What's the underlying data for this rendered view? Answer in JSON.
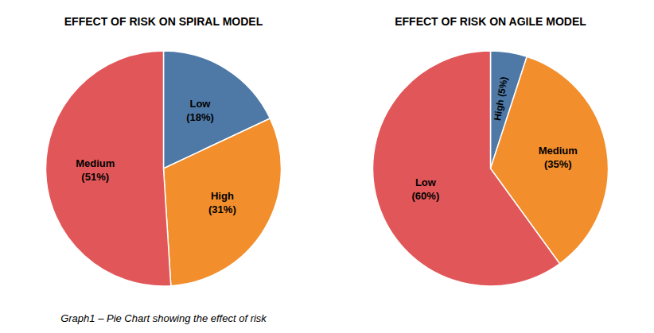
{
  "chart_data": [
    {
      "type": "pie",
      "title": "EFFECT OF RISK ON SPIRAL MODEL",
      "categories": [
        "Low",
        "High",
        "Medium"
      ],
      "values": [
        18,
        31,
        51
      ],
      "value_labels": [
        "(18%)",
        "(31%)",
        "(51%)"
      ],
      "data_labels": true,
      "annotations": [
        "Graph1 – Pie Chart showing the effect of risk"
      ]
    },
    {
      "type": "pie",
      "title": "EFFECT OF RISK ON AGILE MODEL",
      "categories": [
        "High",
        "Medium",
        "Low"
      ],
      "values": [
        5,
        35,
        60
      ],
      "value_labels": [
        "(5%)",
        "(35%)",
        "(60%)"
      ],
      "data_labels": true
    }
  ]
}
